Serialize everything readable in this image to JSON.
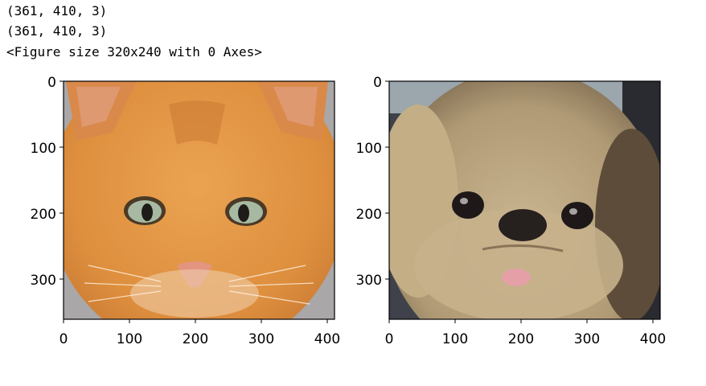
{
  "output": {
    "lines": [
      "(361, 410, 3)",
      "(361, 410, 3)",
      "<Figure size 320x240 with 0 Axes>"
    ]
  },
  "figure": {
    "axes": [
      {
        "subject": "orange kitten face photo",
        "xticks": [
          "0",
          "100",
          "200",
          "300",
          "400"
        ],
        "yticks": [
          "0",
          "100",
          "200",
          "300"
        ],
        "colors": {
          "fur": "#e59a45",
          "fur_dark": "#c7742c",
          "background": "#a8a6a6",
          "eyes": "#9fb3a2",
          "nose": "#e89a86"
        }
      },
      {
        "subject": "Pekingese dog face photo",
        "xticks": [
          "0",
          "100",
          "200",
          "300",
          "400"
        ],
        "yticks": [
          "0",
          "100",
          "200",
          "300"
        ],
        "colors": {
          "fur": "#b9a47f",
          "fur_dark": "#6b5a45",
          "background": "#3d3f46",
          "eyes": "#1e1a1a",
          "tongue": "#e6a0a6"
        }
      }
    ]
  }
}
